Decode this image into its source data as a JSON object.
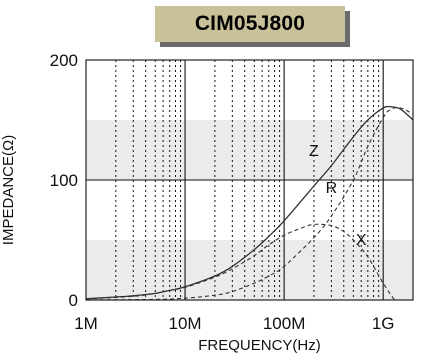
{
  "chart_data": {
    "type": "line",
    "title": "CIM05J800",
    "xlabel": "FREQUENCY(Hz)",
    "ylabel": "IMPEDANCE(Ω)",
    "x_scale": "log",
    "xlim": [
      1000000,
      2000000000
    ],
    "ylim": [
      0,
      200
    ],
    "x_ticks": [
      {
        "value": 1000000,
        "label": "1M"
      },
      {
        "value": 10000000,
        "label": "10M"
      },
      {
        "value": 100000000,
        "label": "100M"
      },
      {
        "value": 1000000000,
        "label": "1G"
      }
    ],
    "y_ticks": [
      {
        "value": 0,
        "label": "0"
      },
      {
        "value": 100,
        "label": "100"
      },
      {
        "value": 200,
        "label": "200"
      }
    ],
    "bands": [
      [
        0,
        50
      ],
      [
        100,
        150
      ]
    ],
    "grid": true,
    "series": [
      {
        "name": "Z",
        "style": "solid",
        "x": [
          1000000,
          2000000,
          3000000,
          5000000,
          7000000,
          10000000,
          20000000,
          30000000,
          50000000,
          70000000,
          100000000,
          200000000,
          300000000,
          500000000,
          700000000,
          1000000000,
          1200000000,
          1500000000,
          2000000000
        ],
        "y": [
          1,
          2.5,
          3.5,
          5.5,
          8,
          11,
          20,
          28,
          42,
          53,
          66,
          95,
          112,
          136,
          150,
          160,
          161,
          159,
          150
        ]
      },
      {
        "name": "R",
        "style": "dashed",
        "x": [
          1000000,
          5000000,
          10000000,
          20000000,
          30000000,
          50000000,
          70000000,
          100000000,
          200000000,
          300000000,
          500000000,
          700000000,
          1000000000,
          1200000000,
          1500000000,
          2000000000
        ],
        "y": [
          0,
          0.5,
          1.5,
          4,
          7,
          14,
          20,
          28,
          52,
          70,
          100,
          128,
          152,
          159,
          160,
          155
        ]
      },
      {
        "name": "X",
        "style": "dashed",
        "x": [
          1000000,
          3000000,
          5000000,
          7000000,
          10000000,
          20000000,
          30000000,
          50000000,
          70000000,
          100000000,
          150000000,
          200000000,
          300000000,
          400000000,
          500000000,
          700000000,
          1000000000,
          1300000000
        ],
        "y": [
          1,
          3,
          5.5,
          8,
          10.5,
          19,
          26,
          37,
          46,
          54,
          60,
          63,
          62,
          57,
          50,
          36,
          14,
          0
        ]
      }
    ],
    "curve_labels": [
      {
        "text": "Z",
        "x": 200000000,
        "y": 120
      },
      {
        "text": "R",
        "x": 300000000,
        "y": 89
      },
      {
        "text": "X",
        "x": 600000000,
        "y": 46
      }
    ]
  }
}
